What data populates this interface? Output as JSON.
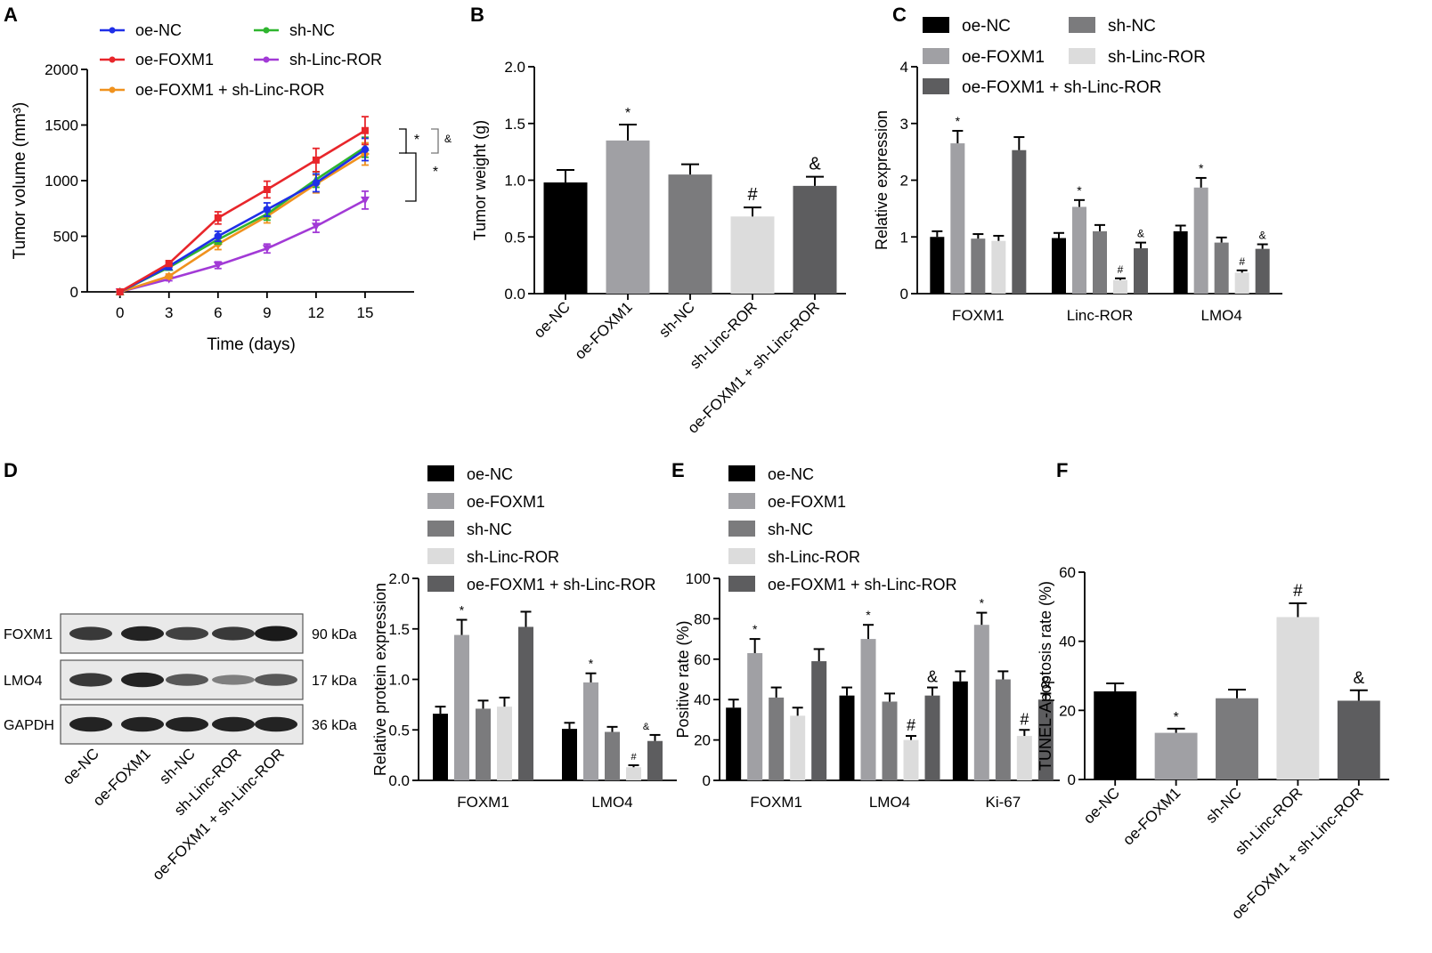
{
  "figure": {
    "panel_letters": [
      "A",
      "B",
      "C",
      "D",
      "E",
      "F"
    ],
    "colors": {
      "oe-NC": "#000000",
      "oe-FOXM1": "#a0a0a4",
      "sh-NC": "#7b7b7d",
      "sh-Linc-ROR": "#dcdcdc",
      "oe-FOXM1 + sh-Linc-ROR": "#5d5d5f",
      "line_oe-NC": "#1f2fe8",
      "line_oe-FOXM1": "#e8262b",
      "line_sh-NC": "#2fb52f",
      "line_sh-Linc-ROR": "#a23ad6",
      "line_combo": "#f0921e"
    }
  },
  "chart_data": [
    {
      "panel": "A",
      "type": "line",
      "title": "",
      "xlabel": "Time (days)",
      "ylabel": "Tumor volume (mm³)",
      "x": [
        0,
        3,
        6,
        9,
        12,
        15
      ],
      "xlim": [
        -2,
        18
      ],
      "ylim": [
        0,
        2000
      ],
      "yticks": [
        0,
        500,
        1000,
        1500,
        2000
      ],
      "series": [
        {
          "name": "oe-NC",
          "values": [
            0,
            230,
            500,
            740,
            980,
            1280
          ],
          "errors": [
            0,
            30,
            45,
            60,
            80,
            100
          ]
        },
        {
          "name": "oe-FOXM1",
          "values": [
            0,
            255,
            665,
            920,
            1185,
            1450
          ],
          "errors": [
            0,
            25,
            55,
            75,
            105,
            125
          ]
        },
        {
          "name": "sh-NC",
          "values": [
            0,
            220,
            470,
            700,
            1010,
            1300
          ],
          "errors": [
            0,
            25,
            40,
            55,
            70,
            90
          ]
        },
        {
          "name": "sh-Linc-ROR",
          "values": [
            0,
            115,
            240,
            390,
            590,
            825
          ],
          "errors": [
            0,
            15,
            30,
            40,
            55,
            80
          ]
        },
        {
          "name": "oe-FOXM1 + sh-Linc-ROR",
          "values": [
            0,
            140,
            430,
            680,
            970,
            1240
          ],
          "errors": [
            0,
            20,
            50,
            60,
            80,
            100
          ]
        }
      ],
      "annotations": [
        "*",
        "&",
        "*"
      ]
    },
    {
      "panel": "B",
      "type": "bar",
      "ylabel": "Tumor weight (g)",
      "ylim": [
        0,
        2.0
      ],
      "yticks": [
        "0.0",
        "0.5",
        "1.0",
        "1.5",
        "2.0"
      ],
      "categories": [
        "oe-NC",
        "oe-FOXM1",
        "sh-NC",
        "sh-Linc-ROR",
        "oe-FOXM1 + sh-Linc-ROR"
      ],
      "values": [
        0.98,
        1.35,
        1.05,
        0.68,
        0.95
      ],
      "errors": [
        0.11,
        0.14,
        0.09,
        0.08,
        0.08
      ],
      "markers": [
        "",
        "*",
        "",
        "#",
        "&"
      ]
    },
    {
      "panel": "C",
      "type": "bar",
      "ylabel": "Relative expression",
      "ylim": [
        0,
        4
      ],
      "yticks": [
        "0",
        "1",
        "2",
        "3",
        "4"
      ],
      "categories": [
        "FOXM1",
        "Linc-ROR",
        "LMO4"
      ],
      "series": [
        {
          "name": "oe-NC",
          "values": [
            1.0,
            0.98,
            1.1
          ],
          "errors": [
            0.1,
            0.09,
            0.1
          ]
        },
        {
          "name": "oe-FOXM1",
          "values": [
            2.65,
            1.53,
            1.87
          ],
          "errors": [
            0.22,
            0.12,
            0.17
          ]
        },
        {
          "name": "sh-NC",
          "values": [
            0.97,
            1.1,
            0.9
          ],
          "errors": [
            0.08,
            0.11,
            0.09
          ]
        },
        {
          "name": "sh-Linc-ROR",
          "values": [
            0.93,
            0.24,
            0.37
          ],
          "errors": [
            0.09,
            0.03,
            0.04
          ]
        },
        {
          "name": "oe-FOXM1 + sh-Linc-ROR",
          "values": [
            2.53,
            0.8,
            0.79
          ],
          "errors": [
            0.23,
            0.1,
            0.08
          ]
        }
      ],
      "markers": [
        [
          "",
          "*",
          "",
          "",
          ""
        ],
        [
          "",
          "*",
          "",
          "#",
          "&"
        ],
        [
          "",
          "*",
          "",
          "#",
          "&"
        ]
      ]
    },
    {
      "panel": "D",
      "type": "bar",
      "ylabel": "Relative  protein expression",
      "ylim": [
        0,
        2.0
      ],
      "yticks": [
        "0.0",
        "0.5",
        "1.0",
        "1.5",
        "2.0"
      ],
      "categories": [
        "FOXM1",
        "LMO4"
      ],
      "series": [
        {
          "name": "oe-NC",
          "values": [
            0.66,
            0.51
          ],
          "errors": [
            0.07,
            0.06
          ]
        },
        {
          "name": "oe-FOXM1",
          "values": [
            1.44,
            0.97
          ],
          "errors": [
            0.15,
            0.09
          ]
        },
        {
          "name": "sh-NC",
          "values": [
            0.71,
            0.48
          ],
          "errors": [
            0.08,
            0.05
          ]
        },
        {
          "name": "sh-Linc-ROR",
          "values": [
            0.73,
            0.13
          ],
          "errors": [
            0.09,
            0.02
          ]
        },
        {
          "name": "oe-FOXM1 + sh-Linc-ROR",
          "values": [
            1.52,
            0.39
          ],
          "errors": [
            0.15,
            0.06
          ]
        }
      ],
      "markers": [
        [
          "",
          "*",
          "",
          "",
          ""
        ],
        [
          "",
          "*",
          "",
          "#",
          "&"
        ]
      ]
    },
    {
      "panel": "E",
      "type": "bar",
      "ylabel": "Positive rate (%)",
      "ylim": [
        0,
        100
      ],
      "yticks": [
        "0",
        "20",
        "40",
        "60",
        "80",
        "100"
      ],
      "categories": [
        "FOXM1",
        "LMO4",
        "Ki-67"
      ],
      "series": [
        {
          "name": "oe-NC",
          "values": [
            36,
            42,
            49
          ],
          "errors": [
            4,
            4,
            5
          ]
        },
        {
          "name": "oe-FOXM1",
          "values": [
            63,
            70,
            77
          ],
          "errors": [
            7,
            7,
            6
          ]
        },
        {
          "name": "sh-NC",
          "values": [
            41,
            39,
            50
          ],
          "errors": [
            5,
            4,
            4
          ]
        },
        {
          "name": "sh-Linc-ROR",
          "values": [
            32,
            20,
            22
          ],
          "errors": [
            4,
            2,
            3
          ]
        },
        {
          "name": "oe-FOXM1 + sh-Linc-ROR",
          "values": [
            59,
            42,
            40
          ],
          "errors": [
            6,
            4,
            3
          ]
        }
      ],
      "markers": [
        [
          "",
          "*",
          "",
          "",
          ""
        ],
        [
          "",
          "*",
          "",
          "#",
          "&"
        ],
        [
          "",
          "*",
          "",
          "#",
          "&"
        ]
      ]
    },
    {
      "panel": "F",
      "type": "bar",
      "ylabel": "TUNEL-Apoptosis rate (%)",
      "ylim": [
        0,
        60
      ],
      "yticks": [
        "0",
        "20",
        "40",
        "60"
      ],
      "categories": [
        "oe-NC",
        "oe-FOXM1",
        "sh-NC",
        "sh-Linc-ROR",
        "oe-FOXM1 + sh-Linc-ROR"
      ],
      "values": [
        25.5,
        13.5,
        23.5,
        47,
        22.8
      ],
      "errors": [
        2.3,
        1.2,
        2.5,
        4,
        3
      ],
      "markers": [
        "",
        "*",
        "",
        "#",
        "&"
      ]
    }
  ],
  "blot": {
    "rows": [
      {
        "name": "FOXM1",
        "size": "90 kDa",
        "intensities": [
          0.8,
          0.95,
          0.75,
          0.8,
          1.0
        ]
      },
      {
        "name": "LMO4",
        "size": "17 kDa",
        "intensities": [
          0.8,
          0.95,
          0.6,
          0.35,
          0.6
        ]
      },
      {
        "name": "GAPDH",
        "size": "36 kDa",
        "intensities": [
          0.95,
          0.95,
          0.95,
          0.95,
          0.95
        ]
      }
    ],
    "lanes": [
      "oe-NC",
      "oe-FOXM1",
      "sh-NC",
      "sh-Linc-ROR",
      "oe-FOXM1 + sh-Linc-ROR"
    ]
  }
}
